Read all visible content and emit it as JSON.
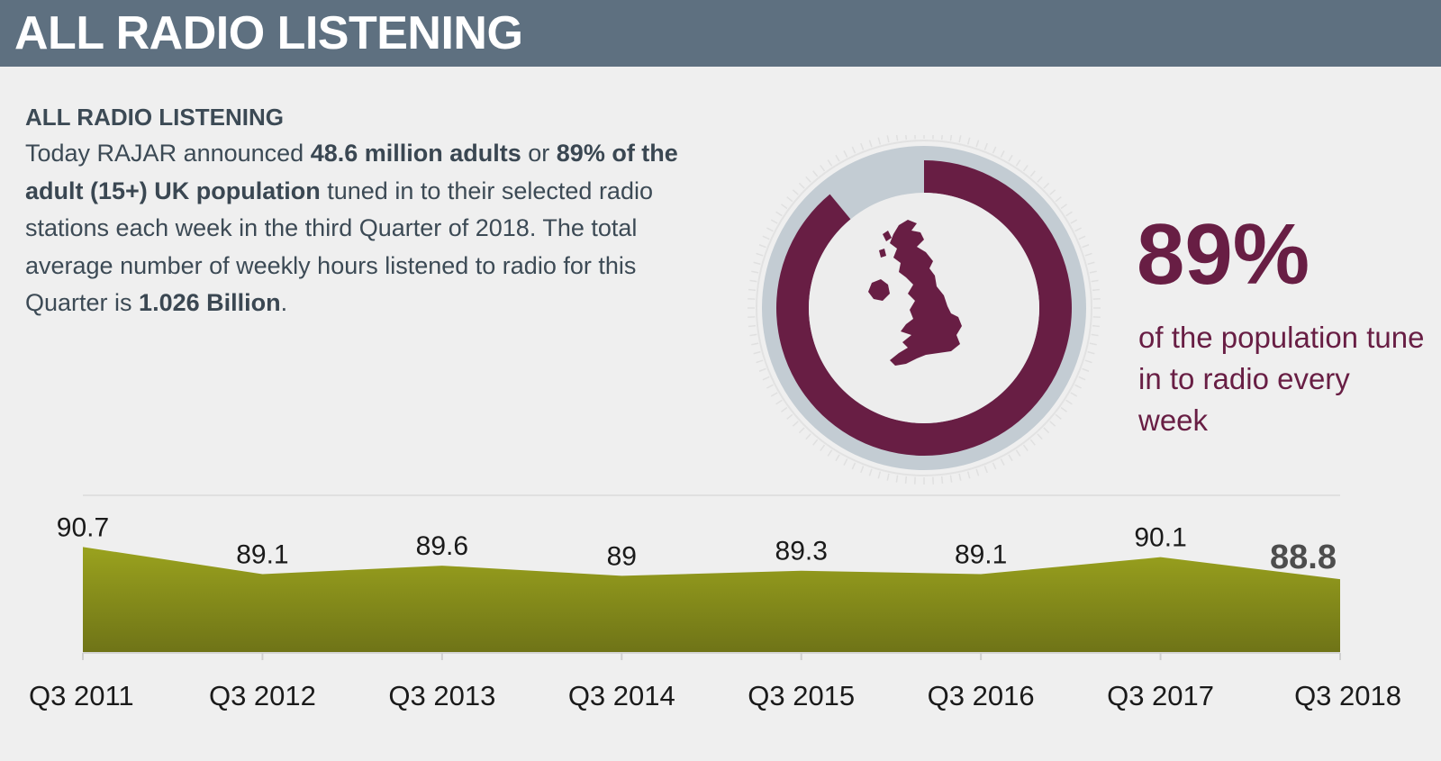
{
  "header": {
    "title": "ALL RADIO LISTENING"
  },
  "intro": {
    "heading": "ALL RADIO LISTENING",
    "parts": [
      {
        "text": "Today RAJAR announced ",
        "bold": false
      },
      {
        "text": "48.6 million adults",
        "bold": true
      },
      {
        "text": " or ",
        "bold": false
      },
      {
        "text": "89% of the adult (15+) UK population",
        "bold": true
      },
      {
        "text": " tuned in to their selected radio stations each week in the third Quarter of 2018. The total average number of weekly hours listened to radio for this Quarter is ",
        "bold": false
      },
      {
        "text": "1.026 Billion",
        "bold": true
      },
      {
        "text": ".",
        "bold": false
      }
    ]
  },
  "donut": {
    "percent": 89,
    "colors": {
      "fill": "#681e44",
      "track": "#c3ccd3",
      "inner": "#ededed"
    },
    "icon": "uk-map-icon"
  },
  "stat": {
    "value": "89%",
    "caption": "of the population tune in to radio every week"
  },
  "chart_data": {
    "type": "area",
    "categories": [
      "Q3 2011",
      "Q3 2012",
      "Q3 2013",
      "Q3 2014",
      "Q3 2015",
      "Q3 2016",
      "Q3 2017",
      "Q3 2018"
    ],
    "values": [
      90.7,
      89.1,
      89.6,
      89,
      89.3,
      89.1,
      90.1,
      88.8
    ],
    "labels": [
      "90.7",
      "89.1",
      "89.6",
      "89",
      "89.3",
      "89.1",
      "90.1",
      "88.8"
    ],
    "highlight_last": true,
    "ylim": [
      84.5,
      91.2
    ],
    "colors": {
      "top": "#9aa21e",
      "bottom": "#6f7417",
      "label": "#1a1a1a",
      "highlight_label": "#4d4d4d"
    },
    "grid": false
  }
}
